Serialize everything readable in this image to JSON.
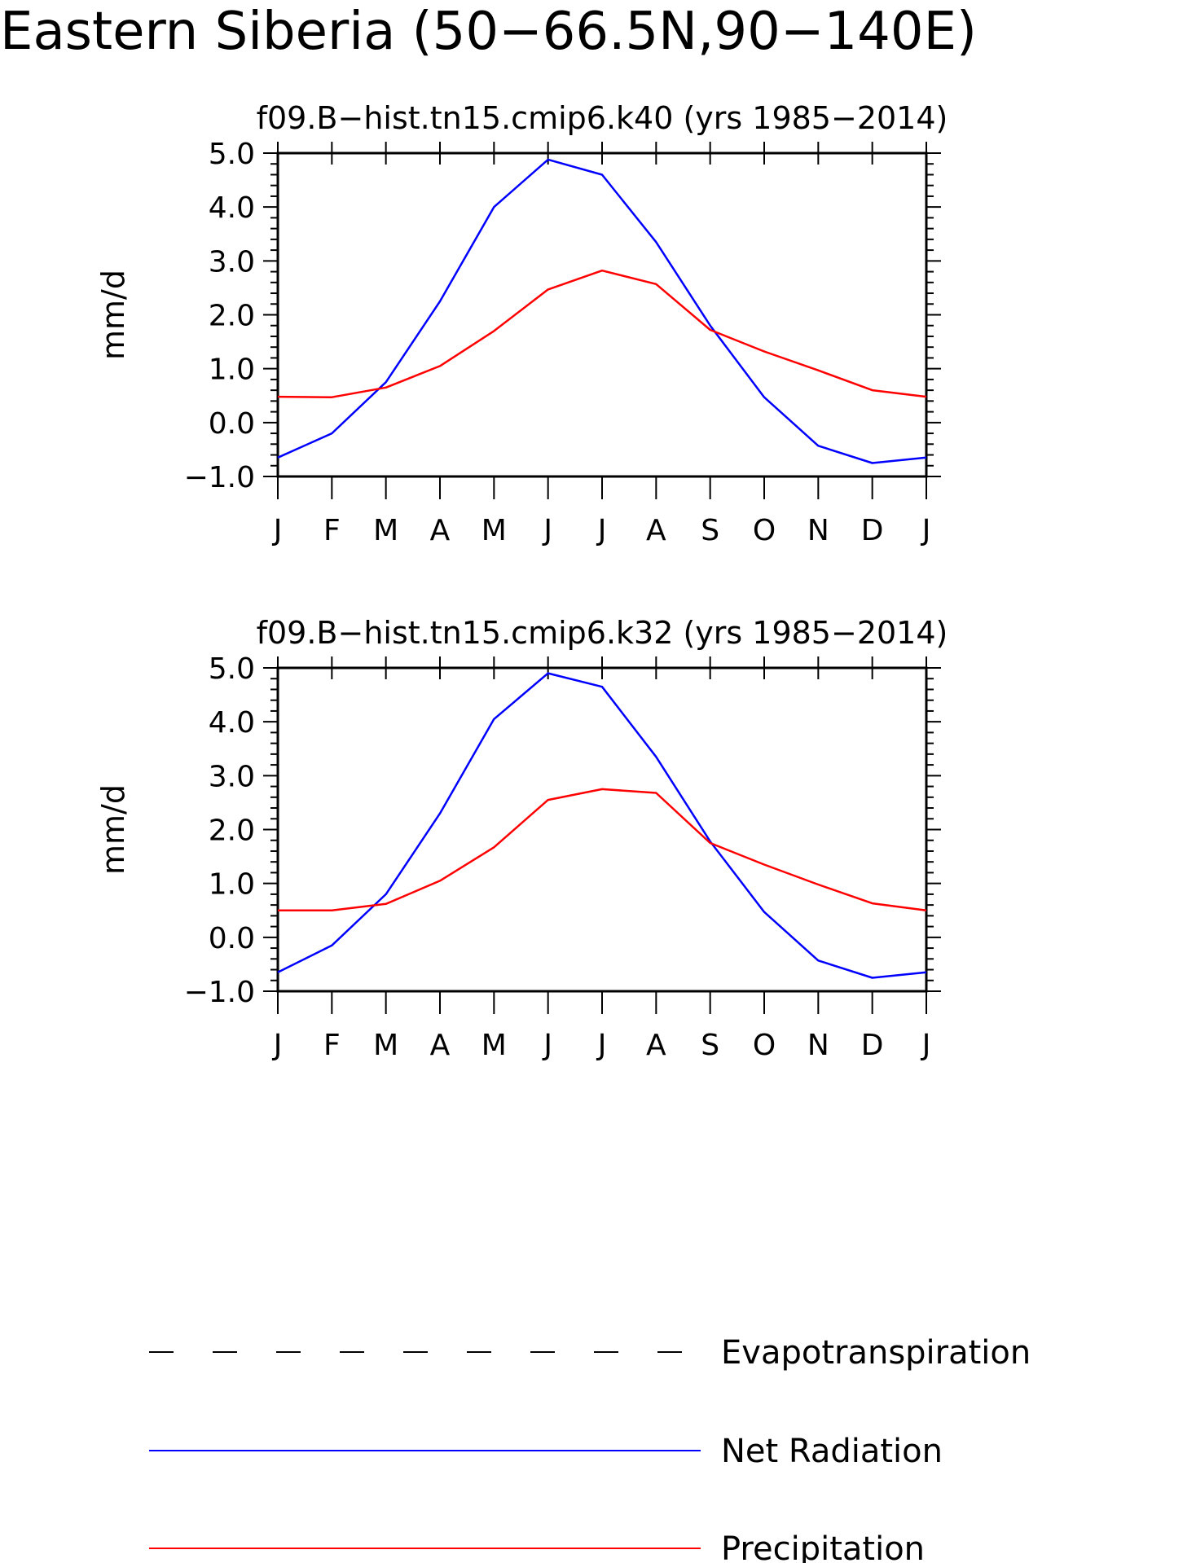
{
  "figure": {
    "title": "Eastern Siberia (50−66.5N,90−140E)"
  },
  "legend": {
    "items": [
      {
        "label": "Evapotranspiration",
        "color": "#000000",
        "style": "dashed"
      },
      {
        "label": "Net Radiation",
        "color": "#0000ff",
        "style": "solid"
      },
      {
        "label": "Precipitation",
        "color": "#ff0000",
        "style": "solid"
      }
    ]
  },
  "chart_data": [
    {
      "type": "line",
      "title": "f09.B−hist.tn15.cmip6.k40 (yrs 1985−2014)",
      "xlabel": "",
      "ylabel": "mm/d",
      "categories": [
        "J",
        "F",
        "M",
        "A",
        "M",
        "J",
        "J",
        "A",
        "S",
        "O",
        "N",
        "D",
        "J"
      ],
      "ylim": [
        -1.0,
        5.0
      ],
      "yticks": [
        "5.0",
        "4.0",
        "3.0",
        "2.0",
        "1.0",
        "0.0",
        "−1.0"
      ],
      "ytick_values": [
        5.0,
        4.0,
        3.0,
        2.0,
        1.0,
        0.0,
        -1.0
      ],
      "series": [
        {
          "name": "Net Radiation",
          "color": "#0000ff",
          "values": [
            -0.65,
            -0.2,
            0.75,
            2.25,
            4.0,
            4.88,
            4.6,
            3.35,
            1.8,
            0.47,
            -0.43,
            -0.75,
            -0.65
          ]
        },
        {
          "name": "Precipitation",
          "color": "#ff0000",
          "values": [
            0.48,
            0.47,
            0.65,
            1.05,
            1.7,
            2.47,
            2.82,
            2.57,
            1.72,
            1.32,
            0.97,
            0.6,
            0.48
          ]
        }
      ]
    },
    {
      "type": "line",
      "title": "f09.B−hist.tn15.cmip6.k32 (yrs 1985−2014)",
      "xlabel": "",
      "ylabel": "mm/d",
      "categories": [
        "J",
        "F",
        "M",
        "A",
        "M",
        "J",
        "J",
        "A",
        "S",
        "O",
        "N",
        "D",
        "J"
      ],
      "ylim": [
        -1.0,
        5.0
      ],
      "yticks": [
        "5.0",
        "4.0",
        "3.0",
        "2.0",
        "1.0",
        "0.0",
        "−1.0"
      ],
      "ytick_values": [
        5.0,
        4.0,
        3.0,
        2.0,
        1.0,
        0.0,
        -1.0
      ],
      "series": [
        {
          "name": "Net Radiation",
          "color": "#0000ff",
          "values": [
            -0.65,
            -0.15,
            0.8,
            2.3,
            4.05,
            4.9,
            4.65,
            3.35,
            1.78,
            0.47,
            -0.43,
            -0.75,
            -0.65
          ]
        },
        {
          "name": "Precipitation",
          "color": "#ff0000",
          "values": [
            0.5,
            0.5,
            0.62,
            1.05,
            1.67,
            2.55,
            2.75,
            2.68,
            1.75,
            1.35,
            0.98,
            0.63,
            0.5
          ]
        }
      ]
    }
  ]
}
